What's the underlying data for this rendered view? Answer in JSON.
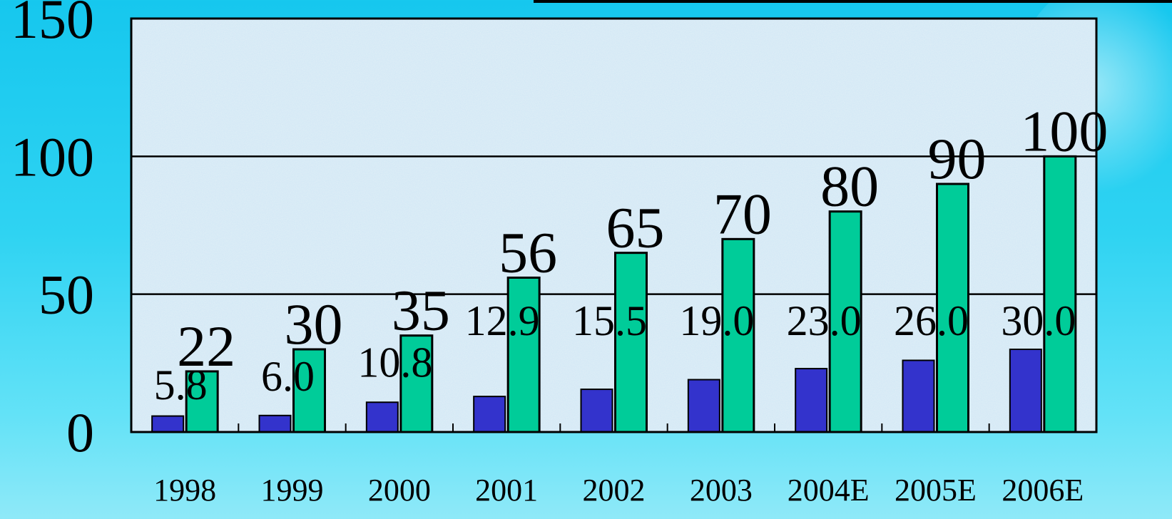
{
  "chart_data": {
    "type": "bar",
    "title": "",
    "xlabel": "",
    "ylabel": "",
    "categories": [
      "1998",
      "1999",
      "2000",
      "2001",
      "2002",
      "2003",
      "2004E",
      "2005E",
      "2006E"
    ],
    "series": [
      {
        "values": [
          5.8,
          6.0,
          10.8,
          12.9,
          15.5,
          19.0,
          23.0,
          26.0,
          30.0
        ],
        "labels": [
          "5.8",
          "6.0",
          "10.8",
          "12.9",
          "15.5",
          "19.0",
          "23.0",
          "26.0",
          "30.0"
        ],
        "color": "#3333cc"
      },
      {
        "values": [
          22,
          30,
          35,
          56,
          65,
          70,
          80,
          90,
          100
        ],
        "labels": [
          "22",
          "30",
          "35",
          "56",
          "65",
          "70",
          "80",
          "90",
          "100"
        ],
        "color": "#00cc99"
      }
    ],
    "ylim": [
      0,
      150
    ],
    "yticks": [
      "0",
      "50",
      "100",
      "150"
    ],
    "grid": true,
    "plot_background": "#cfe6f4"
  }
}
